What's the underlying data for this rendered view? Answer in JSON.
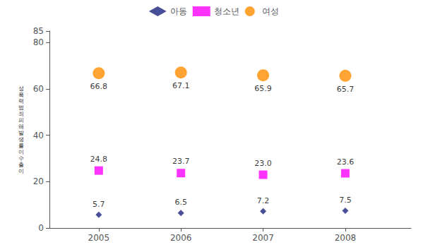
{
  "chart_data": {
    "type": "scatter",
    "ylabel": "성폭력범죄피해발생률이수출이",
    "x": [
      2005,
      2006,
      2007,
      2008
    ],
    "series": [
      {
        "name": "아동",
        "color": "#1a237e",
        "marker": "diamond",
        "values": [
          5.7,
          6.5,
          7.2,
          7.5
        ]
      },
      {
        "name": "청소년",
        "color": "#ff00ff",
        "marker": "square",
        "values": [
          24.8,
          23.7,
          23.0,
          23.6
        ],
        "value_labels": [
          "24.8",
          "23.7",
          "23.0",
          "23.6"
        ]
      },
      {
        "name": "여성",
        "color": "#ff8c00",
        "marker": "circle",
        "values": [
          66.8,
          67.1,
          65.9,
          65.7
        ]
      }
    ],
    "xlim": [
      2004.4,
      2008.8
    ],
    "xticks": [
      2005,
      2006,
      2007,
      2008
    ],
    "ylim": [
      0,
      85
    ],
    "yticks": [
      0,
      20,
      40,
      60,
      80
    ],
    "grid": false,
    "legend": "top",
    "data_labels": true
  }
}
